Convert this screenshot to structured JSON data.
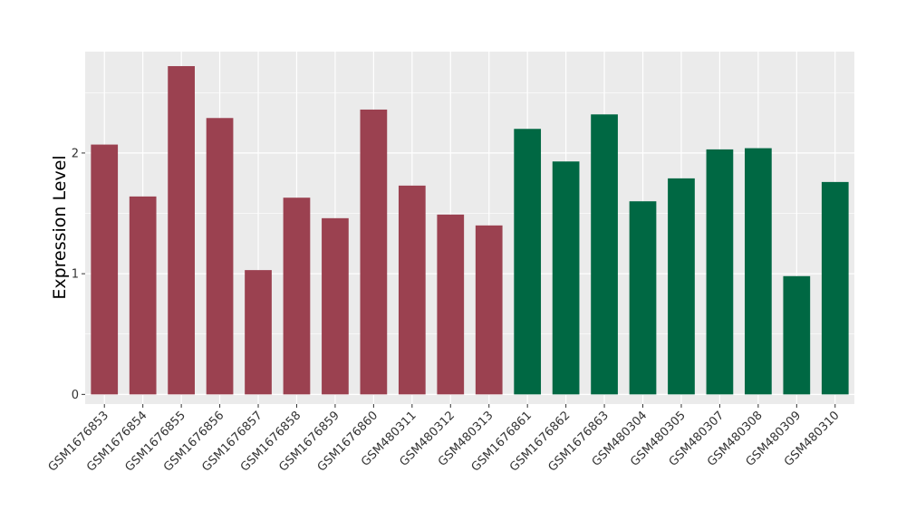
{
  "chart_data": {
    "type": "bar",
    "title": "",
    "xlabel": "",
    "ylabel": "Expression Level",
    "ylim": [
      -0.08,
      2.84
    ],
    "yticks": [
      0,
      1,
      2
    ],
    "grid": true,
    "legend": "none",
    "categories": [
      "GSM1676853",
      "GSM1676854",
      "GSM1676855",
      "GSM1676856",
      "GSM1676857",
      "GSM1676858",
      "GSM1676859",
      "GSM1676860",
      "GSM480311",
      "GSM480312",
      "GSM480313",
      "GSM1676861",
      "GSM1676862",
      "GSM1676863",
      "GSM480304",
      "GSM480305",
      "GSM480307",
      "GSM480308",
      "GSM480309",
      "GSM480310"
    ],
    "values": [
      2.07,
      1.64,
      2.72,
      2.29,
      1.03,
      1.63,
      1.46,
      2.36,
      1.73,
      1.49,
      1.4,
      2.2,
      1.93,
      2.32,
      1.6,
      1.79,
      2.03,
      2.04,
      0.98,
      1.76
    ],
    "group_index": [
      0,
      0,
      0,
      0,
      0,
      0,
      0,
      0,
      0,
      0,
      0,
      1,
      1,
      1,
      1,
      1,
      1,
      1,
      1,
      1
    ],
    "group_colors": [
      "#9B4150",
      "#006843"
    ],
    "panel_background": "#EBEBEB",
    "grid_color": "#FFFFFF"
  }
}
